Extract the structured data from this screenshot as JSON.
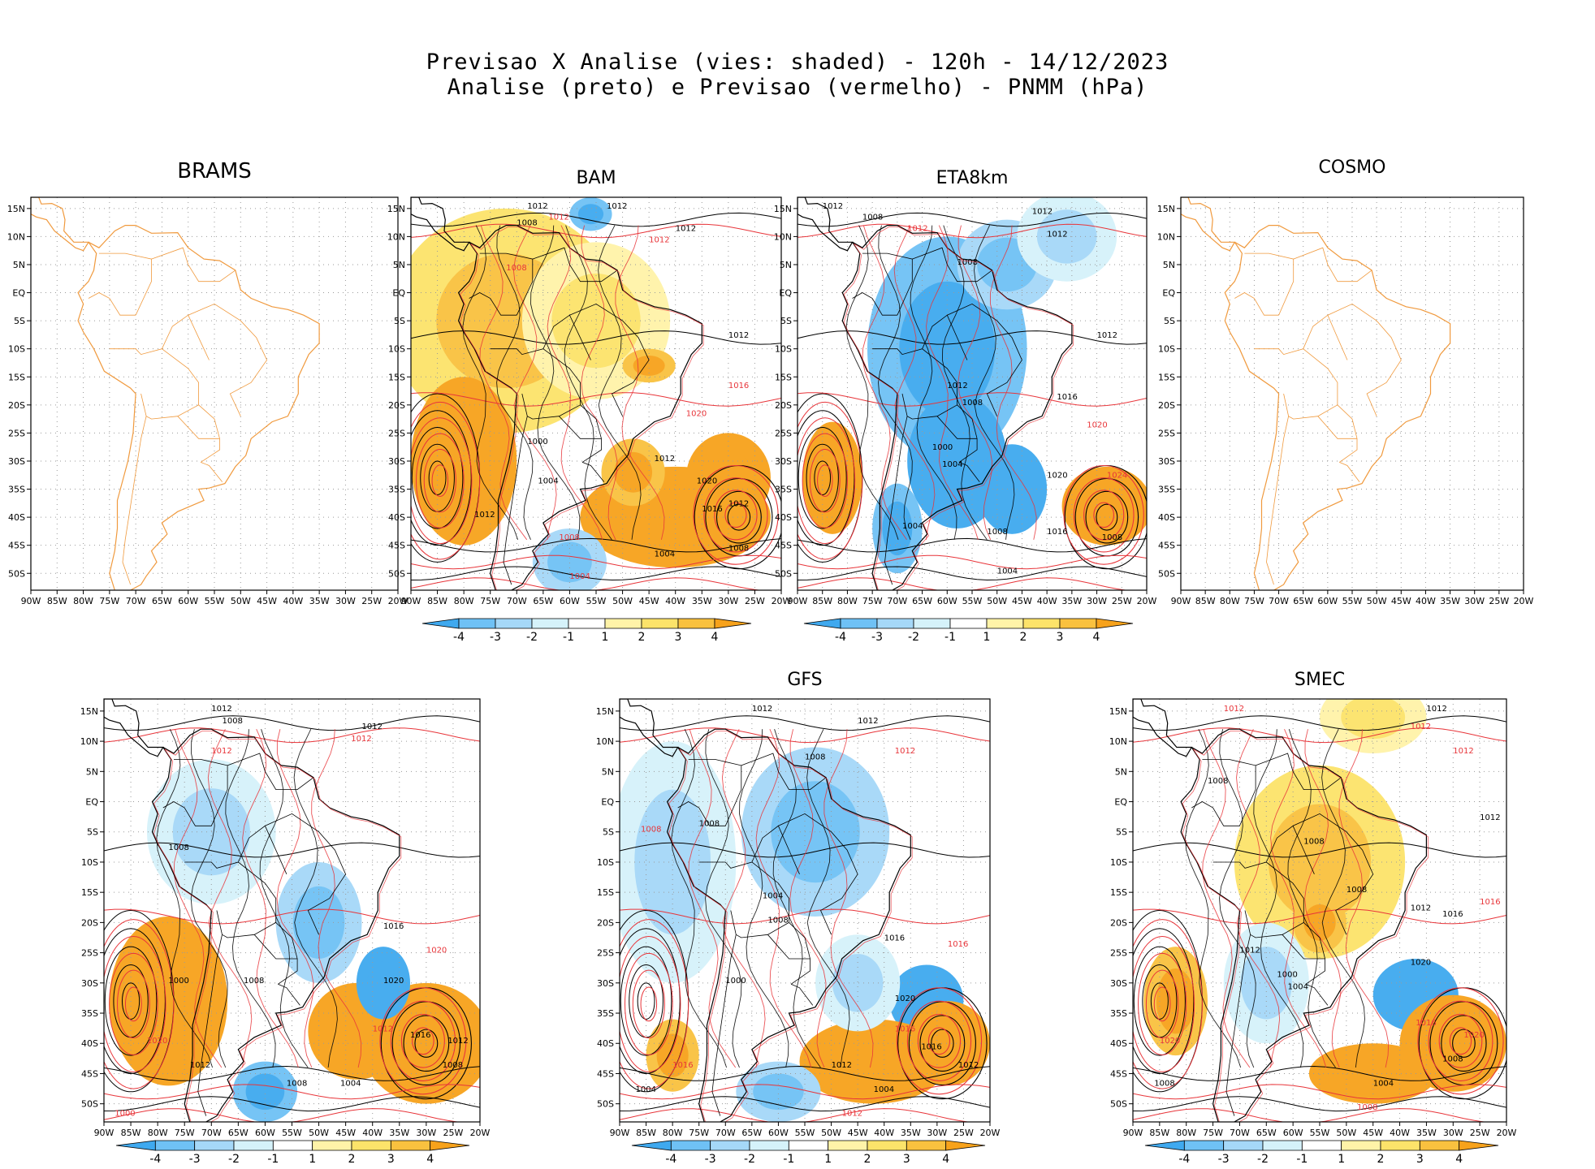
{
  "header": {
    "line1": "Previsao X Analise (vies: shaded) - 120h - 14/12/2023",
    "line2": "Analise (preto) e Previsao (vermelho) - PNMM (hPa)"
  },
  "panels": [
    {
      "id": "brams",
      "name": "BRAMS",
      "has_data": false
    },
    {
      "id": "bam",
      "name": "BAM",
      "has_data": true
    },
    {
      "id": "eta8km",
      "name": "ETA8km",
      "has_data": true
    },
    {
      "id": "cosmo",
      "name": "COSMO",
      "has_data": false
    },
    {
      "id": "unnamed",
      "name": "",
      "has_data": true
    },
    {
      "id": "gfs",
      "name": "GFS",
      "has_data": true
    },
    {
      "id": "smec",
      "name": "SMEC",
      "has_data": true
    }
  ],
  "axes": {
    "lat_labels": [
      "15N",
      "10N",
      "5N",
      "EQ",
      "5S",
      "10S",
      "15S",
      "20S",
      "25S",
      "30S",
      "35S",
      "40S",
      "45S",
      "50S"
    ],
    "lon_labels": [
      "90W",
      "85W",
      "80W",
      "75W",
      "70W",
      "65W",
      "60W",
      "55W",
      "50W",
      "45W",
      "40W",
      "35W",
      "30W",
      "25W",
      "20W"
    ],
    "lat_range": [
      -53,
      17
    ],
    "lon_range": [
      -90,
      -20
    ]
  },
  "colorbar": {
    "labels": [
      "-4",
      "-3",
      "-2",
      "-1",
      "1",
      "2",
      "3",
      "4"
    ],
    "colors": [
      "#3fa9ef",
      "#6fc1f5",
      "#a5d8f8",
      "#d5f2fa",
      "#ffffff",
      "#fff3a8",
      "#fce36a",
      "#f9c13f",
      "#f7a21b"
    ]
  },
  "contours": {
    "analysis_color": "#000000",
    "forecast_color": "#e8353a",
    "labels": [
      "1000",
      "1004",
      "1008",
      "1012",
      "1016",
      "1020",
      "1024"
    ]
  },
  "map_colors": {
    "coast": "#f09a3e",
    "coast_analysis": "#000000"
  }
}
